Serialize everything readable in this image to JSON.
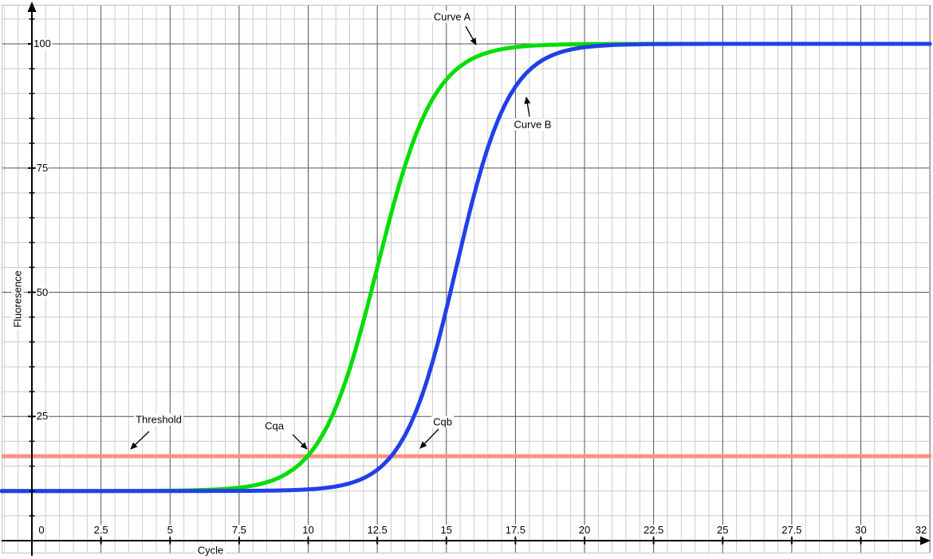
{
  "figure": {
    "xlabel": "Cycle",
    "ylabel": "Fluoresence"
  },
  "annotations": {
    "curve_a": "Curve A",
    "curve_b": "Curve B",
    "threshold": "Threshold",
    "cqa": "Cqa",
    "cqb": "Cqb"
  },
  "colors": {
    "curve_a": "#00dd00",
    "curve_b": "#2040e8",
    "threshold": "#fa9181",
    "axis": "#000000",
    "grid_minor": "#cccccc",
    "grid_major": "#555555",
    "border": "#c0c0c0"
  },
  "chart_data": {
    "type": "line",
    "title": "",
    "xlabel": "Cycle",
    "ylabel": "Fluoresence",
    "xlim": [
      -1.1,
      32.6
    ],
    "ylim": [
      0,
      108
    ],
    "grid": "on",
    "x_ticks": [
      0,
      2.5,
      5,
      7.5,
      10,
      12.5,
      15,
      17.5,
      20,
      22.5,
      25,
      27.5,
      30,
      32
    ],
    "x_tick_labels": [
      "0",
      "2.5",
      "5",
      "7.5",
      "10",
      "12.5",
      "15",
      "17.5",
      "20",
      "22.5",
      "25",
      "27.5",
      "30",
      "32"
    ],
    "y_ticks": [
      25,
      50,
      75,
      100
    ],
    "y_tick_labels": [
      "25",
      "50",
      "75",
      "100"
    ],
    "x_minor_step": 0.5,
    "y_minor_step": 5,
    "threshold": {
      "label": "Threshold",
      "value": 17
    },
    "series": [
      {
        "name": "Curve A",
        "color": "#00dd00",
        "model": "logistic",
        "baseline": 10,
        "plateau": 100,
        "midpoint": 12.5,
        "growth_rate": 0.98,
        "cq": 10,
        "cq_label": "Cqa",
        "x": [
          0,
          1,
          2,
          3,
          4,
          5,
          6,
          7,
          8,
          9,
          10,
          11,
          12,
          13,
          14,
          15,
          16,
          17,
          18,
          19,
          20,
          21,
          22,
          23,
          24,
          25,
          26,
          27,
          28,
          29,
          30,
          31,
          32
        ],
        "y": [
          10,
          10,
          10,
          10,
          10,
          10.1,
          10.2,
          10.4,
          11.1,
          12.8,
          17.1,
          26.8,
          44.2,
          65.8,
          83.2,
          92.9,
          97.2,
          98.9,
          99.6,
          99.9,
          99.9,
          100,
          100,
          100,
          100,
          100,
          100,
          100,
          100,
          100,
          100,
          100,
          100
        ]
      },
      {
        "name": "Curve B",
        "color": "#2040e8",
        "model": "logistic",
        "baseline": 10,
        "plateau": 100,
        "midpoint": 15.36,
        "growth_rate": 1.05,
        "cq": 13,
        "cq_label": "Cqb",
        "x": [
          0,
          1,
          2,
          3,
          4,
          5,
          6,
          7,
          8,
          9,
          10,
          11,
          12,
          13,
          14,
          15,
          16,
          17,
          18,
          19,
          20,
          21,
          22,
          23,
          24,
          25,
          26,
          27,
          28,
          29,
          30,
          31,
          32
        ],
        "y": [
          10,
          10,
          10,
          10,
          10,
          10,
          10,
          10,
          10,
          10.1,
          10.3,
          10.9,
          12.6,
          17,
          27.4,
          46.5,
          69.5,
          86.3,
          94.7,
          98.1,
          99.3,
          99.8,
          99.9,
          100,
          100,
          100,
          100,
          100,
          100,
          100,
          100,
          100,
          100
        ]
      }
    ]
  }
}
